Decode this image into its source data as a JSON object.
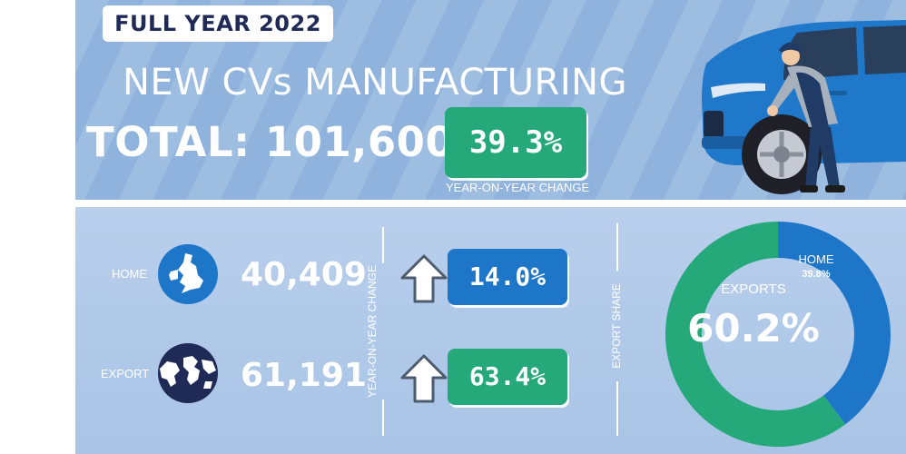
{
  "header": {
    "tag": "FULL YEAR 2022",
    "headline": "NEW CVs MANUFACTURING",
    "total": "TOTAL: 101,600",
    "yoy_change": "39.3%",
    "yoy_caption": "YEAR-ON-YEAR CHANGE"
  },
  "rows": {
    "home": {
      "label": "HOME",
      "value": "40,409",
      "change": "14.0%"
    },
    "export": {
      "label": "EXPORT",
      "value": "61,191",
      "change": "63.4%"
    }
  },
  "side_labels": {
    "yoy": "YEAR-ON-YEAR CHANGE",
    "share": "EXPORT SHARE"
  },
  "chart_data": {
    "type": "pie",
    "variant": "donut",
    "slices": [
      {
        "label": "EXPORTS",
        "value": 60.2,
        "display": "60.2%",
        "color": "#26a97a"
      },
      {
        "label": "HOME",
        "value": 39.8,
        "display": "39.8%",
        "color": "#1e76c8"
      }
    ]
  },
  "colors": {
    "blue": "#1e76c8",
    "green": "#26a97a",
    "navy": "#1f2a57",
    "top_band": "#8fb3dd"
  }
}
